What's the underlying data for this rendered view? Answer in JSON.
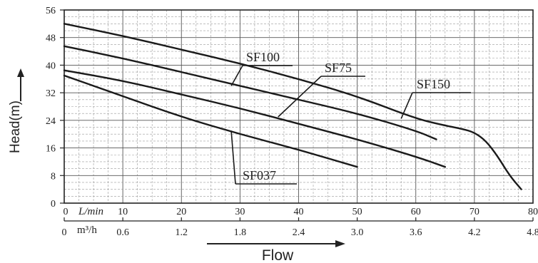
{
  "chart_data": {
    "type": "line",
    "ylabel": "Head(m)",
    "xtitle": "Flow",
    "x_lmin": {
      "unit_label": "L/min",
      "range": [
        0,
        80
      ],
      "ticks": [
        "0",
        "10",
        "20",
        "30",
        "40",
        "50",
        "60",
        "70",
        "80"
      ]
    },
    "x_m3h": {
      "unit_label": "m³/h",
      "ticks": [
        "0",
        "0.6",
        "1.2",
        "1.8",
        "2.4",
        "3.0",
        "3.6",
        "4.2",
        "4.8"
      ]
    },
    "y": {
      "range": [
        0,
        56
      ],
      "ticks": [
        "0",
        "8",
        "16",
        "24",
        "32",
        "40",
        "48",
        "56"
      ]
    },
    "grid": true,
    "series": [
      {
        "name": "SF150",
        "points": [
          [
            0,
            52
          ],
          [
            10,
            48.5
          ],
          [
            20,
            44.5
          ],
          [
            30,
            40.5
          ],
          [
            40,
            36
          ],
          [
            50,
            31
          ],
          [
            60,
            24.5
          ],
          [
            65,
            22.5
          ],
          [
            68,
            21.5
          ],
          [
            70,
            20.5
          ],
          [
            72,
            18
          ],
          [
            74,
            13.5
          ],
          [
            76,
            8
          ],
          [
            78,
            4
          ]
        ]
      },
      {
        "name": "SF100",
        "points": [
          [
            0,
            45.5
          ],
          [
            10,
            42
          ],
          [
            20,
            38
          ],
          [
            30,
            34
          ],
          [
            40,
            30
          ],
          [
            50,
            26
          ],
          [
            60,
            21
          ],
          [
            63.5,
            18.5
          ]
        ]
      },
      {
        "name": "SF75",
        "points": [
          [
            0,
            38.5
          ],
          [
            10,
            35.5
          ],
          [
            20,
            31.5
          ],
          [
            30,
            27.5
          ],
          [
            40,
            23
          ],
          [
            50,
            18.5
          ],
          [
            60,
            13.5
          ],
          [
            65,
            10.5
          ]
        ]
      },
      {
        "name": "SF037",
        "points": [
          [
            0,
            37
          ],
          [
            10,
            31
          ],
          [
            20,
            25
          ],
          [
            30,
            20
          ],
          [
            40,
            15.5
          ],
          [
            50,
            10.5
          ]
        ]
      }
    ],
    "annotations": [
      "SF100",
      "SF75",
      "SF150",
      "SF037"
    ]
  }
}
